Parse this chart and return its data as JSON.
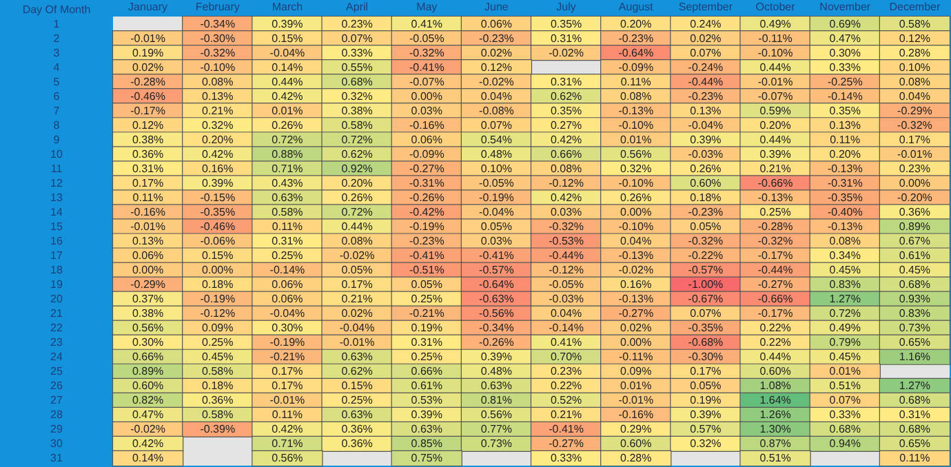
{
  "chart_data": {
    "type": "heatmap",
    "ylabel": "Day Of Month",
    "categories": [
      "January",
      "February",
      "March",
      "April",
      "May",
      "June",
      "July",
      "August",
      "September",
      "October",
      "November",
      "December"
    ],
    "y_categories": [
      "1",
      "2",
      "3",
      "4",
      "5",
      "6",
      "7",
      "8",
      "9",
      "10",
      "11",
      "12",
      "13",
      "14",
      "15",
      "16",
      "17",
      "18",
      "19",
      "20",
      "21",
      "22",
      "23",
      "24",
      "25",
      "26",
      "27",
      "28",
      "29",
      "30",
      "31"
    ],
    "cells": [
      [
        null,
        -0.34,
        0.39,
        0.23,
        0.41,
        0.06,
        0.35,
        0.2,
        0.24,
        0.49,
        0.69,
        0.58
      ],
      [
        -0.01,
        -0.3,
        0.15,
        0.07,
        -0.05,
        -0.23,
        0.31,
        -0.23,
        0.02,
        -0.11,
        0.47,
        0.12
      ],
      [
        0.19,
        -0.32,
        -0.04,
        0.33,
        -0.32,
        0.02,
        -0.02,
        -0.64,
        0.07,
        -0.1,
        0.3,
        0.28
      ],
      [
        0.02,
        -0.1,
        0.14,
        0.55,
        -0.41,
        0.12,
        null,
        -0.09,
        -0.24,
        0.44,
        0.33,
        0.1
      ],
      [
        -0.28,
        0.08,
        0.44,
        0.68,
        -0.07,
        -0.02,
        0.31,
        0.11,
        -0.44,
        -0.01,
        -0.25,
        0.08
      ],
      [
        -0.46,
        0.13,
        0.42,
        0.32,
        0.0,
        0.04,
        0.62,
        0.08,
        -0.23,
        -0.07,
        -0.14,
        0.04
      ],
      [
        -0.17,
        0.21,
        0.01,
        0.38,
        0.03,
        -0.08,
        0.35,
        -0.13,
        0.13,
        0.59,
        0.35,
        -0.29
      ],
      [
        0.12,
        0.32,
        0.26,
        0.58,
        -0.16,
        0.07,
        0.27,
        -0.1,
        -0.04,
        0.2,
        0.13,
        -0.32
      ],
      [
        0.38,
        0.2,
        0.72,
        0.72,
        0.06,
        0.54,
        0.42,
        0.01,
        0.39,
        0.44,
        0.11,
        0.17
      ],
      [
        0.36,
        0.42,
        0.88,
        0.62,
        -0.09,
        0.48,
        0.66,
        0.56,
        -0.03,
        0.39,
        0.2,
        -0.01
      ],
      [
        0.31,
        0.16,
        0.71,
        0.92,
        -0.27,
        0.1,
        0.08,
        0.32,
        0.26,
        0.21,
        -0.13,
        0.23
      ],
      [
        0.17,
        0.39,
        0.43,
        0.2,
        -0.31,
        -0.05,
        -0.12,
        -0.1,
        0.6,
        -0.66,
        -0.31,
        0.0
      ],
      [
        0.11,
        -0.15,
        0.63,
        0.26,
        -0.26,
        -0.19,
        0.42,
        0.26,
        0.18,
        -0.13,
        -0.35,
        -0.2
      ],
      [
        -0.16,
        -0.35,
        0.58,
        0.72,
        -0.42,
        -0.04,
        0.03,
        0.0,
        -0.23,
        0.25,
        -0.4,
        0.36
      ],
      [
        -0.01,
        -0.46,
        0.11,
        0.44,
        -0.19,
        0.05,
        -0.32,
        -0.1,
        0.05,
        -0.28,
        -0.13,
        0.89
      ],
      [
        0.13,
        -0.06,
        0.31,
        0.08,
        -0.23,
        0.03,
        -0.53,
        0.04,
        -0.32,
        -0.32,
        0.08,
        0.67
      ],
      [
        0.06,
        0.15,
        0.25,
        -0.02,
        -0.41,
        -0.41,
        -0.44,
        -0.13,
        -0.22,
        -0.17,
        0.34,
        0.61
      ],
      [
        0.0,
        0.0,
        -0.14,
        0.05,
        -0.51,
        -0.57,
        -0.12,
        -0.02,
        -0.57,
        -0.44,
        0.45,
        0.45
      ],
      [
        -0.29,
        0.18,
        0.06,
        0.17,
        0.05,
        -0.64,
        -0.05,
        0.16,
        -1.0,
        -0.27,
        0.83,
        0.68
      ],
      [
        0.37,
        -0.19,
        0.06,
        0.21,
        0.25,
        -0.63,
        -0.03,
        -0.13,
        -0.67,
        -0.66,
        1.27,
        0.93
      ],
      [
        0.38,
        -0.12,
        -0.04,
        0.02,
        -0.21,
        -0.56,
        0.04,
        -0.27,
        0.07,
        -0.17,
        0.72,
        0.83
      ],
      [
        0.56,
        0.09,
        0.3,
        -0.04,
        0.19,
        -0.34,
        -0.14,
        0.02,
        -0.35,
        0.22,
        0.49,
        0.73
      ],
      [
        0.3,
        0.25,
        -0.19,
        -0.01,
        0.31,
        -0.26,
        0.41,
        0.0,
        -0.68,
        0.22,
        0.79,
        0.65
      ],
      [
        0.66,
        0.45,
        -0.21,
        0.63,
        0.25,
        0.39,
        0.7,
        -0.11,
        -0.3,
        0.44,
        0.45,
        1.16
      ],
      [
        0.89,
        0.58,
        0.17,
        0.62,
        0.66,
        0.48,
        0.23,
        0.09,
        0.17,
        0.6,
        0.01,
        null
      ],
      [
        0.6,
        0.18,
        0.17,
        0.15,
        0.61,
        0.63,
        0.22,
        0.01,
        0.05,
        1.08,
        0.51,
        1.27
      ],
      [
        0.82,
        0.36,
        -0.01,
        0.25,
        0.53,
        0.81,
        0.52,
        -0.01,
        0.19,
        1.64,
        0.07,
        0.68
      ],
      [
        0.47,
        0.58,
        0.11,
        0.63,
        0.39,
        0.56,
        0.21,
        -0.16,
        0.39,
        1.26,
        0.33,
        0.31
      ],
      [
        -0.02,
        -0.39,
        0.42,
        0.36,
        0.63,
        0.77,
        -0.41,
        0.29,
        0.57,
        1.3,
        0.68,
        0.68
      ],
      [
        0.42,
        null,
        0.71,
        0.36,
        0.85,
        0.73,
        -0.27,
        0.6,
        0.32,
        0.87,
        0.94,
        0.65
      ],
      [
        0.14,
        null,
        0.56,
        null,
        0.75,
        null,
        0.33,
        0.28,
        null,
        0.51,
        null,
        0.11
      ]
    ],
    "cell_labels": [
      [
        null,
        "-0.34%",
        "0.39%",
        "0.23%",
        "0.41%",
        "0.06%",
        "0.35%",
        "0.20%",
        "0.24%",
        "0.49%",
        "0.69%",
        "0.58%"
      ],
      [
        "-0.01%",
        "-0.30%",
        "0.15%",
        "0.07%",
        "-0.05%",
        "-0.23%",
        "0.31%",
        "-0.23%",
        "0.02%",
        "-0.11%",
        "0.47%",
        "0.12%"
      ],
      [
        "0.19%",
        "-0.32%",
        "-0.04%",
        "0.33%",
        "-0.32%",
        "0.02%",
        "-0.02%",
        "-0.64%",
        "0.07%",
        "-0.10%",
        "0.30%",
        "0.28%"
      ],
      [
        "0.02%",
        "-0.10%",
        "0.14%",
        "0.55%",
        "-0.41%",
        "0.12%",
        null,
        "-0.09%",
        "-0.24%",
        "0.44%",
        "0.33%",
        "0.10%"
      ],
      [
        "-0.28%",
        "0.08%",
        "0.44%",
        "0.68%",
        "-0.07%",
        "-0.02%",
        "0.31%",
        "0.11%",
        "-0.44%",
        "-0.01%",
        "-0.25%",
        "0.08%"
      ],
      [
        "-0.46%",
        "0.13%",
        "0.42%",
        "0.32%",
        "0.00%",
        "0.04%",
        "0.62%",
        "0.08%",
        "-0.23%",
        "-0.07%",
        "-0.14%",
        "0.04%"
      ],
      [
        "-0.17%",
        "0.21%",
        "0.01%",
        "0.38%",
        "0.03%",
        "-0.08%",
        "0.35%",
        "-0.13%",
        "0.13%",
        "0.59%",
        "0.35%",
        "-0.29%"
      ],
      [
        "0.12%",
        "0.32%",
        "0.26%",
        "0.58%",
        "-0.16%",
        "0.07%",
        "0.27%",
        "-0.10%",
        "-0.04%",
        "0.20%",
        "0.13%",
        "-0.32%"
      ],
      [
        "0.38%",
        "0.20%",
        "0.72%",
        "0.72%",
        "0.06%",
        "0.54%",
        "0.42%",
        "0.01%",
        "0.39%",
        "0.44%",
        "0.11%",
        "0.17%"
      ],
      [
        "0.36%",
        "0.42%",
        "0.88%",
        "0.62%",
        "-0.09%",
        "0.48%",
        "0.66%",
        "0.56%",
        "-0.03%",
        "0.39%",
        "0.20%",
        "-0.01%"
      ],
      [
        "0.31%",
        "0.16%",
        "0.71%",
        "0.92%",
        "-0.27%",
        "0.10%",
        "0.08%",
        "0.32%",
        "0.26%",
        "0.21%",
        "-0.13%",
        "0.23%"
      ],
      [
        "0.17%",
        "0.39%",
        "0.43%",
        "0.20%",
        "-0.31%",
        "-0.05%",
        "-0.12%",
        "-0.10%",
        "0.60%",
        "-0.66%",
        "-0.31%",
        "0.00%"
      ],
      [
        "0.11%",
        "-0.15%",
        "0.63%",
        "0.26%",
        "-0.26%",
        "-0.19%",
        "0.42%",
        "0.26%",
        "0.18%",
        "-0.13%",
        "-0.35%",
        "-0.20%"
      ],
      [
        "-0.16%",
        "-0.35%",
        "0.58%",
        "0.72%",
        "-0.42%",
        "-0.04%",
        "0.03%",
        "0.00%",
        "-0.23%",
        "0.25%",
        "-0.40%",
        "0.36%"
      ],
      [
        "-0.01%",
        "-0.46%",
        "0.11%",
        "0.44%",
        "-0.19%",
        "0.05%",
        "-0.32%",
        "-0.10%",
        "0.05%",
        "-0.28%",
        "-0.13%",
        "0.89%"
      ],
      [
        "0.13%",
        "-0.06%",
        "0.31%",
        "0.08%",
        "-0.23%",
        "0.03%",
        "-0.53%",
        "0.04%",
        "-0.32%",
        "-0.32%",
        "0.08%",
        "0.67%"
      ],
      [
        "0.06%",
        "0.15%",
        "0.25%",
        "-0.02%",
        "-0.41%",
        "-0.41%",
        "-0.44%",
        "-0.13%",
        "-0.22%",
        "-0.17%",
        "0.34%",
        "0.61%"
      ],
      [
        "0.00%",
        "0.00%",
        "-0.14%",
        "0.05%",
        "-0.51%",
        "-0.57%",
        "-0.12%",
        "-0.02%",
        "-0.57%",
        "-0.44%",
        "0.45%",
        "0.45%"
      ],
      [
        "-0.29%",
        "0.18%",
        "0.06%",
        "0.17%",
        "0.05%",
        "-0.64%",
        "-0.05%",
        "0.16%",
        "-1.00%",
        "-0.27%",
        "0.83%",
        "0.68%"
      ],
      [
        "0.37%",
        "-0.19%",
        "0.06%",
        "0.21%",
        "0.25%",
        "-0.63%",
        "-0.03%",
        "-0.13%",
        "-0.67%",
        "-0.66%",
        "1.27%",
        "0.93%"
      ],
      [
        "0.38%",
        "-0.12%",
        "-0.04%",
        "0.02%",
        "-0.21%",
        "-0.56%",
        "0.04%",
        "-0.27%",
        "0.07%",
        "-0.17%",
        "0.72%",
        "0.83%"
      ],
      [
        "0.56%",
        "0.09%",
        "0.30%",
        "-0.04%",
        "0.19%",
        "-0.34%",
        "-0.14%",
        "0.02%",
        "-0.35%",
        "0.22%",
        "0.49%",
        "0.73%"
      ],
      [
        "0.30%",
        "0.25%",
        "-0.19%",
        "-0.01%",
        "0.31%",
        "-0.26%",
        "0.41%",
        "0.00%",
        "-0.68%",
        "0.22%",
        "0.79%",
        "0.65%"
      ],
      [
        "0.66%",
        "0.45%",
        "-0.21%",
        "0.63%",
        "0.25%",
        "0.39%",
        "0.70%",
        "-0.11%",
        "-0.30%",
        "0.44%",
        "0.45%",
        "1.16%"
      ],
      [
        "0.89%",
        "0.58%",
        "0.17%",
        "0.62%",
        "0.66%",
        "0.48%",
        "0.23%",
        "0.09%",
        "0.17%",
        "0.60%",
        "0.01%",
        null
      ],
      [
        "0.60%",
        "0.18%",
        "0.17%",
        "0.15%",
        "0.61%",
        "0.63%",
        "0.22%",
        "0.01%",
        "0.05%",
        "1.08%",
        "0.51%",
        "1.27%"
      ],
      [
        "0.82%",
        "0.36%",
        "-0.01%",
        "0.25%",
        "0.53%",
        "0.81%",
        "0.52%",
        "-0.01%",
        "0.19%",
        "1.64%",
        "0.07%",
        "0.68%"
      ],
      [
        "0.47%",
        "0.58%",
        "0.11%",
        "0.63%",
        "0.39%",
        "0.56%",
        "0.21%",
        "-0.16%",
        "0.39%",
        "1.26%",
        "0.33%",
        "0.31%"
      ],
      [
        "-0.02%",
        "-0.39%",
        "0.42%",
        "0.36%",
        "0.63%",
        "0.77%",
        "-0.41%",
        "0.29%",
        "0.57%",
        "1.30%",
        "0.68%",
        "0.68%"
      ],
      [
        "0.42%",
        null,
        "0.71%",
        "0.36%",
        "0.85%",
        "0.73%",
        "-0.27%",
        "0.60%",
        "0.32%",
        "0.87%",
        "0.94%",
        "0.65%"
      ],
      [
        "0.14%",
        null,
        "0.56%",
        null,
        "0.75%",
        null,
        "0.33%",
        "0.28%",
        null,
        "0.51%",
        null,
        "0.11%"
      ]
    ]
  }
}
